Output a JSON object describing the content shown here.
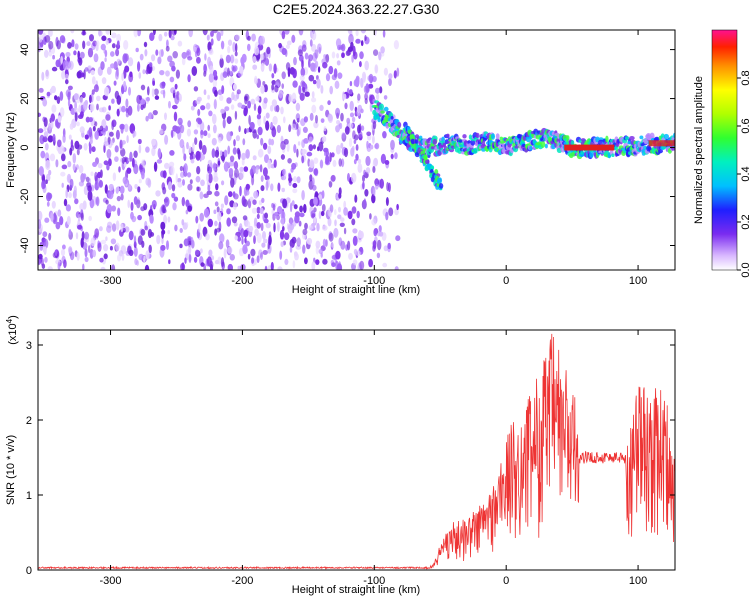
{
  "title": "C2E5.2024.363.22.27.G30",
  "chart_data": [
    {
      "type": "heatmap",
      "xlabel": "Height of straight line (km)",
      "ylabel": "Frequency (Hz)",
      "xlim": [
        -355,
        128
      ],
      "ylim": [
        -50,
        48
      ],
      "xticks": [
        -300,
        -200,
        -100,
        0,
        100
      ],
      "yticks": [
        -40,
        -20,
        0,
        20,
        40
      ],
      "noise_region_x": [
        -355,
        -78
      ],
      "signal_track": [
        {
          "x": -100,
          "y": 16
        },
        {
          "x": -90,
          "y": 12
        },
        {
          "x": -80,
          "y": 5
        },
        {
          "x": -70,
          "y": 2
        },
        {
          "x": -60,
          "y": 0
        },
        {
          "x": -50,
          "y": 1
        },
        {
          "x": -40,
          "y": 2
        },
        {
          "x": -30,
          "y": 1
        },
        {
          "x": -20,
          "y": 2
        },
        {
          "x": -10,
          "y": 3
        },
        {
          "x": 0,
          "y": 0
        },
        {
          "x": 10,
          "y": 2
        },
        {
          "x": 20,
          "y": 3
        },
        {
          "x": 30,
          "y": 4
        },
        {
          "x": 40,
          "y": 2
        },
        {
          "x": 50,
          "y": 0
        },
        {
          "x": 80,
          "y": 0
        },
        {
          "x": 100,
          "y": 1
        },
        {
          "x": 128,
          "y": 2
        }
      ],
      "descending_branch": [
        {
          "x": -75,
          "y": 8
        },
        {
          "x": -68,
          "y": 0
        },
        {
          "x": -60,
          "y": -6
        },
        {
          "x": -54,
          "y": -12
        },
        {
          "x": -50,
          "y": -16
        }
      ],
      "colorbar": {
        "label": "Normalized spectral amplitude",
        "range": [
          0,
          1
        ],
        "ticks": [
          0.0,
          0.2,
          0.4,
          0.6,
          0.8
        ],
        "tick_labels": [
          "0.0",
          "0.2",
          "0.4",
          "0.6",
          "0.8"
        ]
      }
    },
    {
      "type": "line",
      "xlabel": "Height of straight line (km)",
      "ylabel": "SNR (10 * v/v)",
      "y_multiplier": "(x10",
      "y_multiplier_exp": "4",
      "xlim": [
        -355,
        128
      ],
      "ylim": [
        0,
        3.2
      ],
      "xticks": [
        -300,
        -200,
        -100,
        0,
        100
      ],
      "yticks": [
        0,
        1,
        2,
        3
      ],
      "color": "#ee3333",
      "envelope": [
        {
          "x": -355,
          "y": 0.02
        },
        {
          "x": -60,
          "y": 0.02
        },
        {
          "x": -55,
          "y": 0.1
        },
        {
          "x": -50,
          "y": 0.35
        },
        {
          "x": -45,
          "y": 0.6
        },
        {
          "x": -40,
          "y": 0.65
        },
        {
          "x": -30,
          "y": 0.7
        },
        {
          "x": -20,
          "y": 0.9
        },
        {
          "x": -10,
          "y": 1.15
        },
        {
          "x": 0,
          "y": 1.8
        },
        {
          "x": 5,
          "y": 2.0
        },
        {
          "x": 15,
          "y": 2.2
        },
        {
          "x": 20,
          "y": 2.5
        },
        {
          "x": 25,
          "y": 2.7
        },
        {
          "x": 35,
          "y": 3.2
        },
        {
          "x": 45,
          "y": 2.8
        },
        {
          "x": 52,
          "y": 2.4
        },
        {
          "x": 55,
          "y": 1.6
        },
        {
          "x": 70,
          "y": 1.55
        },
        {
          "x": 90,
          "y": 1.55
        },
        {
          "x": 95,
          "y": 2.2
        },
        {
          "x": 100,
          "y": 2.6
        },
        {
          "x": 110,
          "y": 2.4
        },
        {
          "x": 120,
          "y": 2.5
        },
        {
          "x": 128,
          "y": 1.5
        }
      ]
    }
  ]
}
